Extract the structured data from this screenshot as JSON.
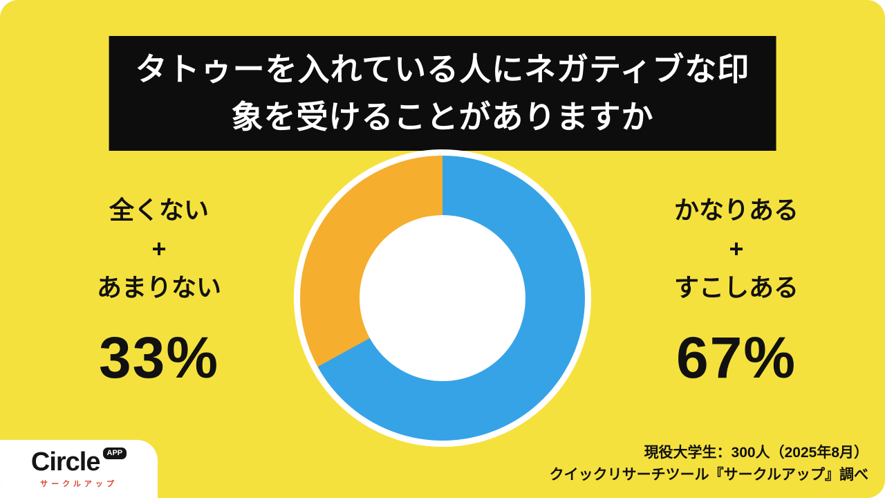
{
  "colors": {
    "background": "#F5E13E",
    "slice_blue": "#36A3E6",
    "slice_orange": "#F5AE2E",
    "title_bg": "#0d0d0d",
    "title_text": "#ffffff",
    "logo_subtitle": "#D6452F"
  },
  "title": {
    "full": "タトゥーを入れている人にネガティブな印象を受けることがありますか",
    "line1": "タトゥーを入れている人にネガティブな印",
    "line2": "象を受けることがありますか"
  },
  "chart_data": {
    "type": "pie",
    "donut": true,
    "title": "タトゥーを入れている人にネガティブな印象を受けることがありますか",
    "direction": "clockwise",
    "start_angle_deg": 0,
    "slices": [
      {
        "label": "かなりある＋すこしある",
        "value": 67,
        "color": "#36A3E6"
      },
      {
        "label": "全くない＋あまりない",
        "value": 33,
        "color": "#F5AE2E"
      }
    ],
    "legend_position": "none",
    "annotations": [
      "67%",
      "33%"
    ]
  },
  "left_stat": {
    "label_lines": [
      "全くない",
      "+",
      "あまりない"
    ],
    "value": "33%"
  },
  "right_stat": {
    "label_lines": [
      "かなりある",
      "+",
      "すこしある"
    ],
    "value": "67%"
  },
  "logo": {
    "name": "Circle",
    "badge": "APP",
    "subtitle": "サークルアップ"
  },
  "source": {
    "line1": "現役大学生：300人（2025年8月）",
    "line2": "クイックリサーチツール『サークルアップ』調べ"
  }
}
